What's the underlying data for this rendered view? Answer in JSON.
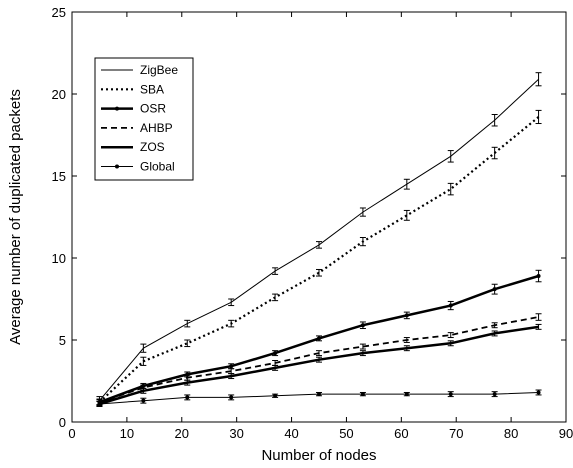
{
  "chart_data": {
    "type": "line",
    "title": "",
    "xlabel": "Number of nodes",
    "ylabel": "Average number of duplicated packets",
    "xlim": [
      0,
      90
    ],
    "ylim": [
      0,
      25
    ],
    "xticks": [
      0,
      10,
      20,
      30,
      40,
      50,
      60,
      70,
      80,
      90
    ],
    "yticks": [
      0,
      5,
      10,
      15,
      20,
      25
    ],
    "grid": false,
    "legend_position": "top-left",
    "x": [
      5,
      13,
      21,
      29,
      37,
      45,
      53,
      61,
      69,
      77,
      85
    ],
    "series": [
      {
        "name": "ZigBee",
        "style": "thin-solid",
        "values": [
          1.3,
          4.5,
          6.0,
          7.3,
          9.2,
          10.8,
          12.8,
          14.5,
          16.2,
          18.4,
          20.9
        ],
        "errors": [
          0.25,
          0.25,
          0.2,
          0.2,
          0.2,
          0.2,
          0.25,
          0.3,
          0.35,
          0.35,
          0.4
        ]
      },
      {
        "name": "SBA",
        "style": "dotted",
        "values": [
          1.2,
          3.7,
          4.8,
          6.0,
          7.6,
          9.1,
          11.0,
          12.6,
          14.2,
          16.4,
          18.6
        ],
        "errors": [
          0.2,
          0.25,
          0.2,
          0.2,
          0.2,
          0.2,
          0.25,
          0.3,
          0.35,
          0.35,
          0.4
        ]
      },
      {
        "name": "OSR",
        "style": "thick-dot",
        "values": [
          1.2,
          2.2,
          2.9,
          3.4,
          4.2,
          5.1,
          5.9,
          6.5,
          7.1,
          8.1,
          8.9
        ],
        "errors": [
          0.15,
          0.15,
          0.15,
          0.15,
          0.15,
          0.15,
          0.2,
          0.2,
          0.25,
          0.3,
          0.35
        ]
      },
      {
        "name": "AHBP",
        "style": "dashed",
        "values": [
          1.2,
          2.1,
          2.7,
          3.1,
          3.6,
          4.2,
          4.6,
          5.0,
          5.3,
          5.9,
          6.4
        ],
        "errors": [
          0.15,
          0.15,
          0.15,
          0.15,
          0.15,
          0.15,
          0.15,
          0.15,
          0.15,
          0.15,
          0.2
        ]
      },
      {
        "name": "ZOS",
        "style": "thick-solid",
        "values": [
          1.1,
          1.9,
          2.4,
          2.8,
          3.3,
          3.8,
          4.2,
          4.5,
          4.8,
          5.4,
          5.8
        ],
        "errors": [
          0.15,
          0.15,
          0.15,
          0.15,
          0.15,
          0.15,
          0.15,
          0.15,
          0.15,
          0.15,
          0.15
        ]
      },
      {
        "name": "Global",
        "style": "thin-dot",
        "values": [
          1.1,
          1.3,
          1.5,
          1.5,
          1.6,
          1.7,
          1.7,
          1.7,
          1.7,
          1.7,
          1.8
        ],
        "errors": [
          0.15,
          0.15,
          0.15,
          0.15,
          0.1,
          0.1,
          0.1,
          0.1,
          0.15,
          0.15,
          0.15
        ]
      }
    ]
  }
}
